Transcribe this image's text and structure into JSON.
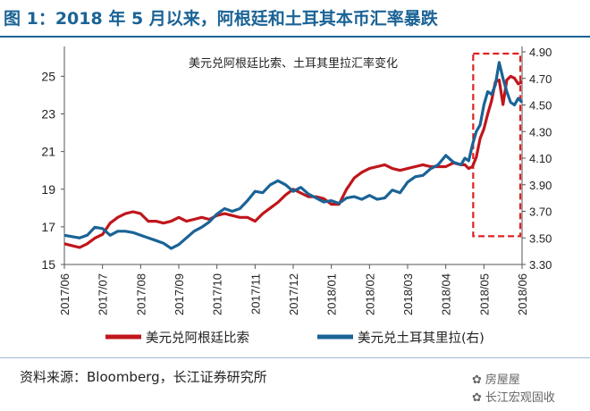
{
  "header": {
    "title": "图 1：2018 年 5 月以来，阿根廷和土耳其本币汇率暴跌"
  },
  "chart_data": {
    "type": "line",
    "title": "美元兑阿根廷比索、土耳其里拉汇率变化",
    "x_tick_labels": [
      "2017/06",
      "2017/07",
      "2017/08",
      "2017/09",
      "2017/10",
      "2017/11",
      "2017/12",
      "2018/01",
      "2018/02",
      "2018/03",
      "2018/04",
      "2018/05",
      "2018/06"
    ],
    "y_left": {
      "ticks": [
        15,
        17,
        19,
        21,
        23,
        25
      ],
      "range": [
        15,
        26.3
      ]
    },
    "y_right": {
      "ticks": [
        "3.30",
        "3.50",
        "3.70",
        "3.90",
        "4.10",
        "4.30",
        "4.50",
        "4.70",
        "4.90"
      ],
      "range": [
        3.3,
        4.9
      ]
    },
    "grid": false,
    "legend_position": "bottom",
    "highlight_box_x_range": [
      "2018/05",
      "2018/06"
    ],
    "series": [
      {
        "name": "美元兑阿根廷比索",
        "axis": "left",
        "color": "#c0161b",
        "x": [
          0,
          0.2,
          0.4,
          0.6,
          0.8,
          1.0,
          1.2,
          1.4,
          1.6,
          1.8,
          2.0,
          2.2,
          2.4,
          2.6,
          2.8,
          3.0,
          3.2,
          3.4,
          3.6,
          3.8,
          4.0,
          4.2,
          4.4,
          4.6,
          4.8,
          5.0,
          5.2,
          5.4,
          5.6,
          5.8,
          6.0,
          6.2,
          6.4,
          6.6,
          6.8,
          7.0,
          7.2,
          7.4,
          7.6,
          7.8,
          8.0,
          8.2,
          8.4,
          8.6,
          8.8,
          9.0,
          9.2,
          9.4,
          9.6,
          9.8,
          10.0,
          10.2,
          10.4,
          10.5,
          10.6,
          10.7,
          10.8,
          10.9,
          11.0,
          11.1,
          11.2,
          11.3,
          11.4,
          11.5,
          11.6,
          11.7,
          11.8,
          11.9,
          12.0
        ],
        "values": [
          16.1,
          16.0,
          15.9,
          16.1,
          16.4,
          16.6,
          17.2,
          17.5,
          17.7,
          17.8,
          17.7,
          17.3,
          17.3,
          17.2,
          17.3,
          17.5,
          17.3,
          17.4,
          17.5,
          17.4,
          17.6,
          17.7,
          17.6,
          17.5,
          17.5,
          17.3,
          17.7,
          18.0,
          18.3,
          18.7,
          19.0,
          18.8,
          18.6,
          18.6,
          18.5,
          18.2,
          18.2,
          19.0,
          19.6,
          19.9,
          20.1,
          20.2,
          20.3,
          20.1,
          20.0,
          20.1,
          20.2,
          20.3,
          20.2,
          20.2,
          20.2,
          20.4,
          20.3,
          20.3,
          20.1,
          20.2,
          20.7,
          21.7,
          22.2,
          23.0,
          23.7,
          24.7,
          24.8,
          23.5,
          24.8,
          25.0,
          24.9,
          24.6,
          24.7
        ]
      },
      {
        "name": "美元兑土耳其里拉(右)",
        "axis": "right",
        "color": "#1a6396",
        "x": [
          0,
          0.2,
          0.4,
          0.6,
          0.8,
          1.0,
          1.2,
          1.4,
          1.6,
          1.8,
          2.0,
          2.2,
          2.4,
          2.6,
          2.8,
          3.0,
          3.2,
          3.4,
          3.6,
          3.8,
          4.0,
          4.2,
          4.4,
          4.6,
          4.8,
          5.0,
          5.2,
          5.4,
          5.6,
          5.8,
          6.0,
          6.2,
          6.4,
          6.6,
          6.8,
          7.0,
          7.2,
          7.4,
          7.6,
          7.8,
          8.0,
          8.2,
          8.4,
          8.6,
          8.8,
          9.0,
          9.2,
          9.4,
          9.6,
          9.8,
          10.0,
          10.2,
          10.4,
          10.5,
          10.6,
          10.7,
          10.8,
          10.9,
          11.0,
          11.1,
          11.2,
          11.3,
          11.4,
          11.5,
          11.6,
          11.7,
          11.8,
          11.9,
          12.0
        ],
        "values": [
          3.52,
          3.51,
          3.5,
          3.52,
          3.58,
          3.57,
          3.52,
          3.55,
          3.55,
          3.54,
          3.52,
          3.5,
          3.48,
          3.46,
          3.42,
          3.45,
          3.5,
          3.55,
          3.58,
          3.62,
          3.68,
          3.72,
          3.7,
          3.72,
          3.78,
          3.85,
          3.84,
          3.9,
          3.93,
          3.9,
          3.85,
          3.88,
          3.83,
          3.8,
          3.77,
          3.78,
          3.76,
          3.8,
          3.81,
          3.79,
          3.82,
          3.79,
          3.8,
          3.86,
          3.84,
          3.92,
          3.96,
          3.97,
          4.02,
          4.05,
          4.12,
          4.07,
          4.05,
          4.1,
          4.08,
          4.2,
          4.3,
          4.35,
          4.5,
          4.6,
          4.58,
          4.65,
          4.82,
          4.7,
          4.6,
          4.52,
          4.5,
          4.55,
          4.52
        ]
      }
    ]
  },
  "legend": [
    {
      "label": "美元兑阿根廷比索",
      "color": "#c0161b"
    },
    {
      "label": "美元兑土耳其里拉(右)",
      "color": "#1a6396"
    }
  ],
  "footer": {
    "source": "资料来源：Bloomberg，长江证券研究所",
    "watermark_line1": "房屋屋",
    "watermark_line2": "长江宏观固收"
  }
}
